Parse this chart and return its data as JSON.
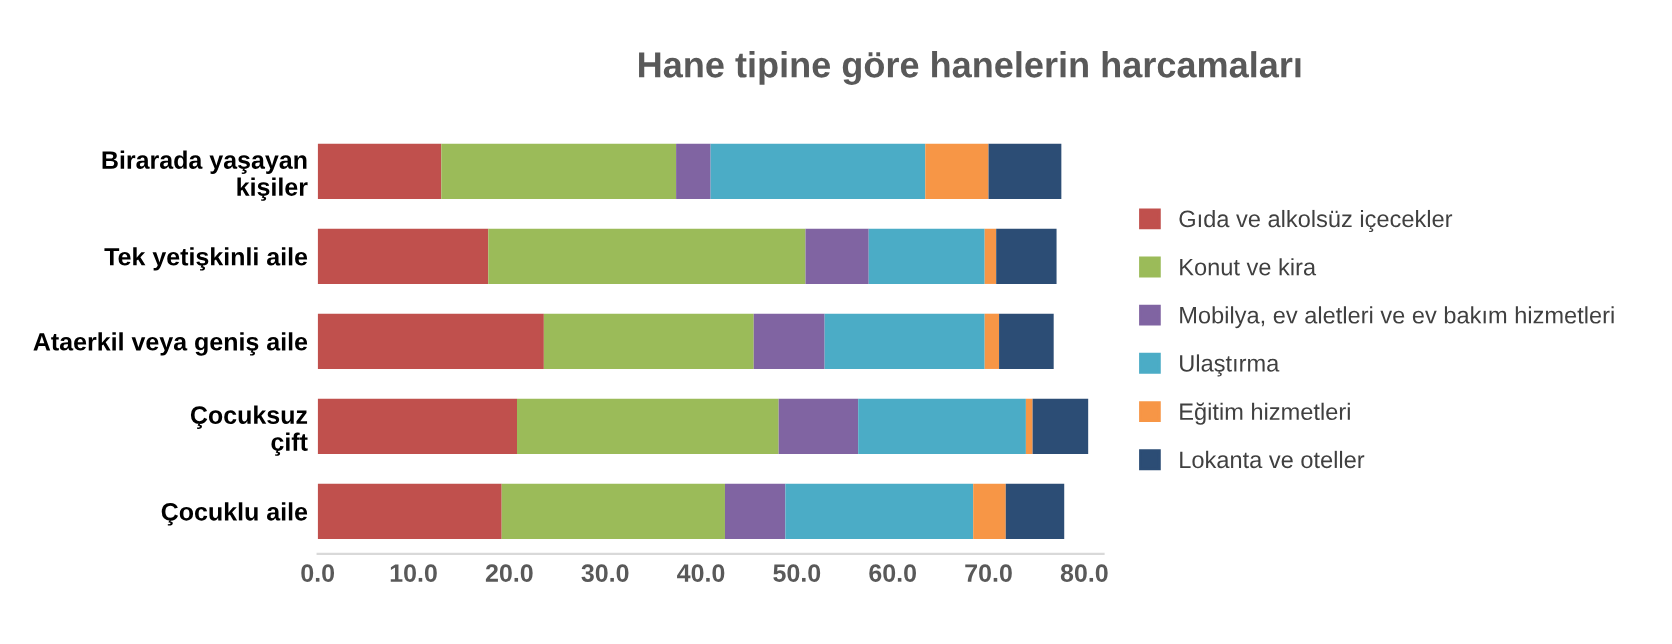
{
  "chart_data": {
    "type": "bar",
    "orientation": "horizontal",
    "stacked": true,
    "title": "Hane tipine göre hanelerin harcamaları",
    "categories": [
      "Birarada yaşayan\nkişiler",
      "Tek yetişkinli aile",
      "Ataerkil veya geniş aile",
      "Çocuksuz\nçift",
      "Çocuklu aile"
    ],
    "series": [
      {
        "name": "Gıda ve alkolsüz içecekler",
        "color": "#c0504d",
        "values": [
          12.9,
          17.8,
          23.6,
          20.8,
          19.2
        ]
      },
      {
        "name": "Konut ve kira",
        "color": "#9bbb59",
        "values": [
          24.5,
          33.1,
          21.9,
          27.3,
          23.3
        ]
      },
      {
        "name": "Mobilya, ev aletleri ve ev bakım hizmetleri",
        "color": "#8064a2",
        "values": [
          3.6,
          6.6,
          7.4,
          8.3,
          6.3
        ]
      },
      {
        "name": "Ulaştırma",
        "color": "#4bacc6",
        "values": [
          22.4,
          12.1,
          16.7,
          17.5,
          19.6
        ]
      },
      {
        "name": "Eğitim hizmetleri",
        "color": "#f79646",
        "values": [
          6.6,
          1.2,
          1.5,
          0.7,
          3.4
        ]
      },
      {
        "name": "Lokanta ve oteller",
        "color": "#2c4d75",
        "values": [
          7.6,
          6.3,
          5.7,
          5.8,
          6.1
        ]
      }
    ],
    "xlim": [
      0,
      82
    ],
    "xticks": [
      {
        "value": 0,
        "label": "0.0"
      },
      {
        "value": 10,
        "label": "10.0"
      },
      {
        "value": 20,
        "label": "20.0"
      },
      {
        "value": 30,
        "label": "30.0"
      },
      {
        "value": 40,
        "label": "40.0"
      },
      {
        "value": 50,
        "label": "50.0"
      },
      {
        "value": 60,
        "label": "60.0"
      },
      {
        "value": 70,
        "label": "70.0"
      },
      {
        "value": 80,
        "label": "80.0"
      }
    ],
    "grid": false,
    "legend": "right"
  }
}
